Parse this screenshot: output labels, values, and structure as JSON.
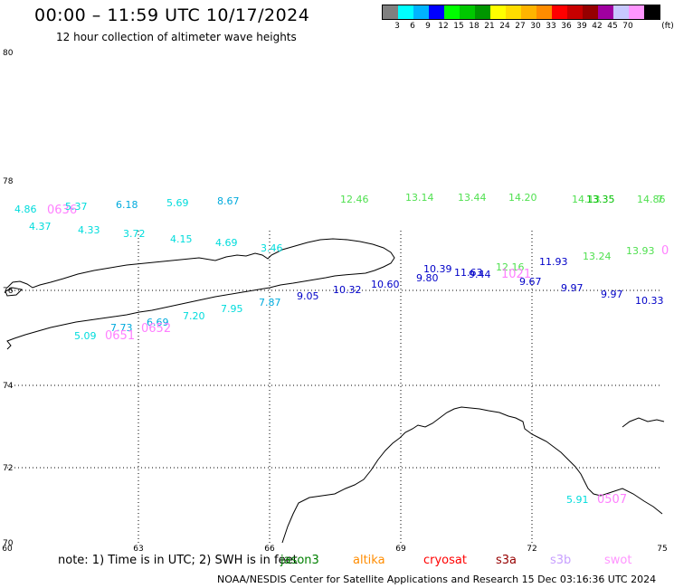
{
  "header": {
    "title": "00:00 – 11:59 UTC 10/17/2024",
    "subtitle": "12 hour collection of altimeter wave heights"
  },
  "legend": {
    "unit": "(ft)",
    "colors": [
      "#808080",
      "#00ffff",
      "#00b4ff",
      "#0000ff",
      "#00ff00",
      "#00c800",
      "#009600",
      "#ffff00",
      "#ffdc00",
      "#ffb400",
      "#ff8c00",
      "#ff0000",
      "#c80000",
      "#960000",
      "#a000a0",
      "#c8c8ff",
      "#ff96ff",
      "#000000"
    ],
    "labels": [
      "3",
      "6",
      "9",
      "12",
      "15",
      "18",
      "21",
      "24",
      "27",
      "30",
      "33",
      "36",
      "39",
      "42",
      "45",
      "70"
    ]
  },
  "axes": {
    "y_ticks": [
      "80",
      "78",
      "76",
      "74",
      "72",
      "70"
    ],
    "x_ticks": [
      "60",
      "63",
      "66",
      "69",
      "72",
      "75"
    ]
  },
  "observations": [
    {
      "text": "4.86",
      "color": "#00dcdc"
    },
    {
      "text": "0636",
      "color": "#ff80ff"
    },
    {
      "text": "5.37",
      "color": "#00dcdc"
    },
    {
      "text": "6.18",
      "color": "#00aadd"
    },
    {
      "text": "5.69",
      "color": "#00dcdc"
    },
    {
      "text": "8.67",
      "color": "#00aadd"
    },
    {
      "text": "12.46",
      "color": "#50e050"
    },
    {
      "text": "13.14",
      "color": "#50e050"
    },
    {
      "text": "13.44",
      "color": "#50e050"
    },
    {
      "text": "14.20",
      "color": "#50e050"
    },
    {
      "text": "14.13",
      "color": "#50e050"
    },
    {
      "text": "13.35",
      "color": "#00c000"
    },
    {
      "text": "14.86",
      "color": "#50e050"
    },
    {
      "text": "7",
      "color": "#50e050"
    },
    {
      "text": "4.37",
      "color": "#00dcdc"
    },
    {
      "text": "4.33",
      "color": "#00dcdc"
    },
    {
      "text": "3.72",
      "color": "#00dcdc"
    },
    {
      "text": "4.15",
      "color": "#00dcdc"
    },
    {
      "text": "4.69",
      "color": "#00dcdc"
    },
    {
      "text": "3.46",
      "color": "#00dcdc"
    },
    {
      "text": "10.39",
      "color": "#0000c8"
    },
    {
      "text": "11.63",
      "color": "#0000c8"
    },
    {
      "text": "9.44",
      "color": "#0000c8"
    },
    {
      "text": "12.16",
      "color": "#50e050"
    },
    {
      "text": "1021",
      "color": "#ff80ff"
    },
    {
      "text": "11.93",
      "color": "#0000c8"
    },
    {
      "text": "13.24",
      "color": "#50e050"
    },
    {
      "text": "13.93",
      "color": "#50e050"
    },
    {
      "text": "0",
      "color": "#ff80ff"
    },
    {
      "text": "9.80",
      "color": "#0000c8"
    },
    {
      "text": "9.67",
      "color": "#0000c8"
    },
    {
      "text": "9.97",
      "color": "#0000c8"
    },
    {
      "text": "9.97",
      "color": "#0000c8"
    },
    {
      "text": "10.33",
      "color": "#0000c8"
    },
    {
      "text": "10.60",
      "color": "#0000c8"
    },
    {
      "text": "10.32",
      "color": "#0000c8"
    },
    {
      "text": "9.05",
      "color": "#0000c8"
    },
    {
      "text": "7.87",
      "color": "#00aadd"
    },
    {
      "text": "7.95",
      "color": "#00dcdc"
    },
    {
      "text": "7.20",
      "color": "#00dcdc"
    },
    {
      "text": "6.69",
      "color": "#00aadd"
    },
    {
      "text": "0652",
      "color": "#ff80ff"
    },
    {
      "text": "7.73",
      "color": "#00aadd"
    },
    {
      "text": "0651",
      "color": "#ff80ff"
    },
    {
      "text": "5.09",
      "color": "#00dcdc"
    },
    {
      "text": "5.91",
      "color": "#00dcdc"
    },
    {
      "text": "0507",
      "color": "#ff80ff"
    }
  ],
  "footer": {
    "note": "note:  1) Time is in UTC;  2) SWH is in feet",
    "satellites": [
      {
        "name": "jason3",
        "color": "#008000"
      },
      {
        "name": "altika",
        "color": "#ff8c00"
      },
      {
        "name": "cryosat",
        "color": "#ff0000"
      },
      {
        "name": "s3a",
        "color": "#960000"
      },
      {
        "name": "s3b",
        "color": "#c8a0ff"
      },
      {
        "name": "swot",
        "color": "#ff96ff"
      }
    ],
    "credit": "NOAA/NESDIS Center for Satellite Applications and Research     15 Dec 03:16:36 UTC 2024"
  }
}
